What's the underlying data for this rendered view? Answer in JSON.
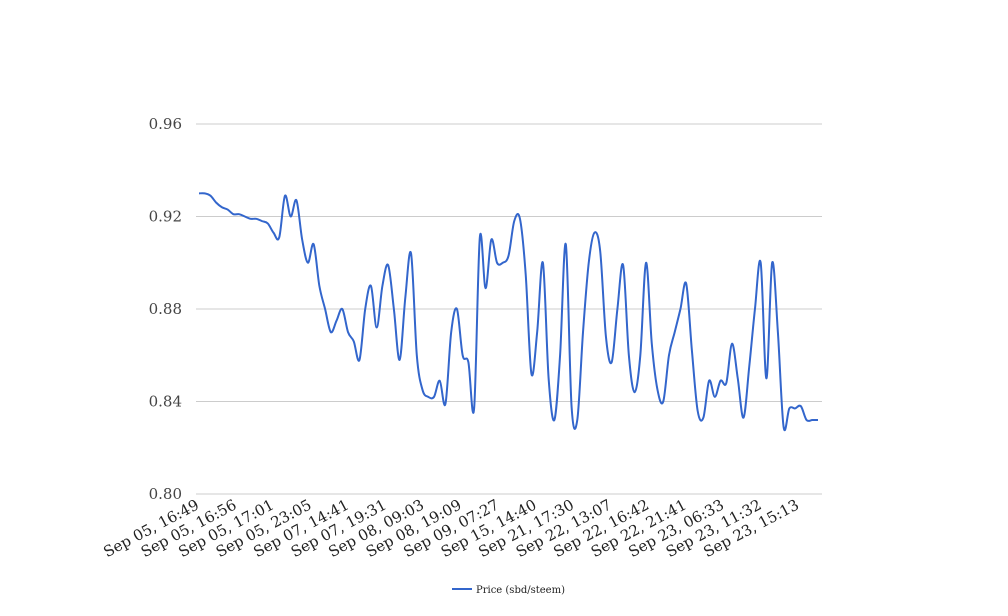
{
  "chart_data": {
    "type": "line",
    "title": "",
    "xlabel": "",
    "ylabel": "",
    "ylim": [
      0.8,
      0.96
    ],
    "y_ticks": [
      "0.80",
      "0.84",
      "0.88",
      "0.92",
      "0.96"
    ],
    "y_tick_values": [
      0.8,
      0.84,
      0.88,
      0.92,
      0.96
    ],
    "grid": true,
    "legend_position": "bottom-center",
    "x_tick_labels": [
      "Sep 05, 16:49",
      "Sep 05, 16:56",
      "Sep 05, 17:01",
      "Sep 05, 23:05",
      "Sep 07, 14:41",
      "Sep 07, 19:31",
      "Sep 08, 09:03",
      "Sep 08, 19:09",
      "Sep 09, 07:27",
      "Sep 15, 14:40",
      "Sep 21, 17:30",
      "Sep 22, 13:07",
      "Sep 22, 16:42",
      "Sep 22, 21:41",
      "Sep 23, 06:33",
      "Sep 23, 11:32",
      "Sep 23, 15:13"
    ],
    "series": [
      {
        "name": "Price (sbd/steem)",
        "color": "#3366cc",
        "values": [
          0.93,
          0.93,
          0.929,
          0.926,
          0.924,
          0.923,
          0.921,
          0.921,
          0.92,
          0.919,
          0.919,
          0.918,
          0.917,
          0.913,
          0.911,
          0.929,
          0.92,
          0.927,
          0.91,
          0.9,
          0.908,
          0.89,
          0.88,
          0.87,
          0.875,
          0.88,
          0.87,
          0.866,
          0.858,
          0.88,
          0.89,
          0.872,
          0.89,
          0.899,
          0.88,
          0.858,
          0.885,
          0.904,
          0.86,
          0.845,
          0.842,
          0.842,
          0.849,
          0.839,
          0.87,
          0.88,
          0.86,
          0.857,
          0.837,
          0.911,
          0.889,
          0.91,
          0.9,
          0.9,
          0.903,
          0.918,
          0.919,
          0.895,
          0.852,
          0.87,
          0.9,
          0.85,
          0.832,
          0.86,
          0.908,
          0.838,
          0.832,
          0.87,
          0.9,
          0.913,
          0.905,
          0.868,
          0.857,
          0.88,
          0.899,
          0.86,
          0.844,
          0.86,
          0.9,
          0.865,
          0.845,
          0.84,
          0.86,
          0.87,
          0.88,
          0.891,
          0.862,
          0.836,
          0.833,
          0.849,
          0.842,
          0.849,
          0.848,
          0.865,
          0.85,
          0.833,
          0.855,
          0.88,
          0.9,
          0.85,
          0.9,
          0.87,
          0.829,
          0.837,
          0.837,
          0.838,
          0.832,
          0.832,
          0.832
        ]
      }
    ]
  }
}
